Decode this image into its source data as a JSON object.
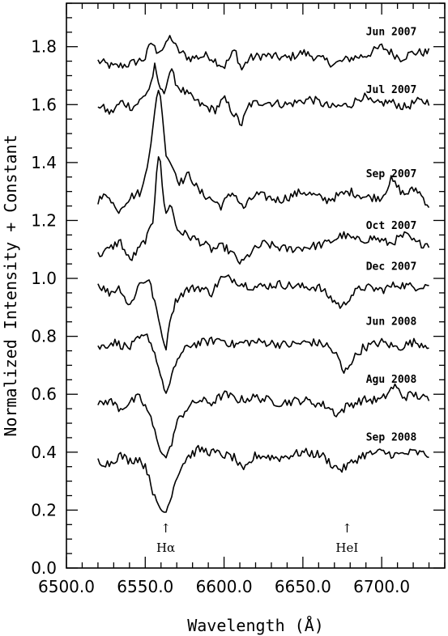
{
  "chart_data": {
    "type": "line",
    "xlabel": "Wavelength (Å)",
    "ylabel": "Normalized Intensity + Constant",
    "xlim": [
      6500,
      6740
    ],
    "ylim": [
      0.0,
      1.95
    ],
    "xticks": [
      6500,
      6550,
      6600,
      6650,
      6700
    ],
    "xtick_labels": [
      "6500.0",
      "6550.0",
      "6600.0",
      "6650.0",
      "6700.0"
    ],
    "yticks": [
      0.0,
      0.2,
      0.4,
      0.6,
      0.8,
      1.0,
      1.2,
      1.4,
      1.6,
      1.8
    ],
    "ytick_labels": [
      "0.0",
      "0.2",
      "0.4",
      "0.6",
      "0.8",
      "1.0",
      "1.2",
      "1.4",
      "1.6",
      "1.8"
    ],
    "series": [
      {
        "name": "Jun 2007",
        "baseline": 1.76,
        "label_pos": [
          6690,
          1.84
        ],
        "x": [
          6520,
          6530,
          6540,
          6550,
          6554,
          6557,
          6561,
          6566,
          6570,
          6578,
          6590,
          6600,
          6607,
          6611,
          6616,
          6625,
          6640,
          6650,
          6660,
          6670,
          6680,
          6690,
          6700,
          6712,
          6720,
          6730
        ],
        "y": [
          1.75,
          1.73,
          1.74,
          1.76,
          1.82,
          1.78,
          1.79,
          1.84,
          1.79,
          1.76,
          1.77,
          1.73,
          1.79,
          1.72,
          1.76,
          1.77,
          1.76,
          1.78,
          1.76,
          1.74,
          1.76,
          1.77,
          1.8,
          1.76,
          1.78,
          1.78
        ]
      },
      {
        "name": "Jul 2007",
        "baseline": 1.6,
        "label_pos": [
          6690,
          1.64
        ],
        "x": [
          6520,
          6528,
          6535,
          6542,
          6548,
          6553,
          6556,
          6559,
          6562,
          6566,
          6571,
          6578,
          6585,
          6594,
          6600,
          6606,
          6611,
          6616,
          6625,
          6640,
          6655,
          6668,
          6680,
          6688,
          6695,
          6705,
          6715,
          6722,
          6730
        ],
        "y": [
          1.6,
          1.57,
          1.61,
          1.59,
          1.62,
          1.66,
          1.73,
          1.66,
          1.64,
          1.72,
          1.66,
          1.63,
          1.6,
          1.58,
          1.62,
          1.57,
          1.53,
          1.6,
          1.61,
          1.6,
          1.62,
          1.59,
          1.6,
          1.63,
          1.6,
          1.61,
          1.59,
          1.61,
          1.61
        ]
      },
      {
        "name": "Sep 2007",
        "baseline": 1.26,
        "label_pos": [
          6690,
          1.35
        ],
        "x": [
          6520,
          6527,
          6532,
          6540,
          6548,
          6552,
          6555,
          6558,
          6560,
          6563,
          6567,
          6572,
          6578,
          6584,
          6590,
          6598,
          6606,
          6612,
          6620,
          6635,
          6650,
          6665,
          6680,
          6690,
          6700,
          6706,
          6714,
          6722,
          6730
        ],
        "y": [
          1.27,
          1.29,
          1.23,
          1.28,
          1.3,
          1.42,
          1.52,
          1.66,
          1.62,
          1.43,
          1.39,
          1.33,
          1.36,
          1.3,
          1.28,
          1.25,
          1.3,
          1.24,
          1.29,
          1.27,
          1.3,
          1.27,
          1.3,
          1.28,
          1.28,
          1.34,
          1.29,
          1.31,
          1.25
        ]
      },
      {
        "name": "Oct 2007",
        "baseline": 1.1,
        "label_pos": [
          6690,
          1.17
        ],
        "x": [
          6520,
          6527,
          6534,
          6540,
          6546,
          6552,
          6555,
          6557,
          6559,
          6561,
          6563,
          6566,
          6570,
          6576,
          6584,
          6592,
          6600,
          6606,
          6611,
          6617,
          6625,
          6640,
          6655,
          6665,
          6675,
          6685,
          6695,
          6705,
          6715,
          6722,
          6730
        ],
        "y": [
          1.08,
          1.1,
          1.13,
          1.06,
          1.1,
          1.15,
          1.2,
          1.36,
          1.45,
          1.3,
          1.22,
          1.26,
          1.17,
          1.15,
          1.13,
          1.1,
          1.11,
          1.08,
          1.05,
          1.09,
          1.12,
          1.1,
          1.11,
          1.12,
          1.15,
          1.13,
          1.14,
          1.12,
          1.15,
          1.12,
          1.12
        ]
      },
      {
        "name": "Dec 2007",
        "baseline": 0.97,
        "label_pos": [
          6690,
          1.03
        ],
        "x": [
          6520,
          6527,
          6534,
          6540,
          6546,
          6552,
          6556,
          6560,
          6563,
          6566,
          6570,
          6576,
          6584,
          6592,
          6598,
          6605,
          6612,
          6620,
          6635,
          6650,
          6660,
          6668,
          6675,
          6680,
          6688,
          6700,
          6710,
          6720,
          6730
        ],
        "y": [
          0.98,
          0.95,
          0.97,
          0.9,
          0.98,
          1.0,
          0.92,
          0.82,
          0.75,
          0.87,
          0.93,
          0.96,
          0.97,
          0.95,
          1.0,
          1.0,
          0.98,
          0.97,
          0.98,
          0.97,
          0.97,
          0.93,
          0.9,
          0.94,
          0.97,
          0.96,
          0.98,
          0.97,
          0.98
        ]
      },
      {
        "name": "Jun 2008",
        "baseline": 0.77,
        "label_pos": [
          6690,
          0.84
        ],
        "x": [
          6520,
          6530,
          6540,
          6546,
          6552,
          6556,
          6560,
          6563,
          6566,
          6570,
          6578,
          6588,
          6598,
          6606,
          6614,
          6625,
          6640,
          6655,
          6665,
          6672,
          6676,
          6680,
          6688,
          6700,
          6710,
          6720,
          6730
        ],
        "y": [
          0.76,
          0.78,
          0.76,
          0.79,
          0.8,
          0.74,
          0.66,
          0.6,
          0.64,
          0.72,
          0.77,
          0.78,
          0.79,
          0.77,
          0.78,
          0.78,
          0.77,
          0.78,
          0.77,
          0.73,
          0.67,
          0.71,
          0.76,
          0.78,
          0.76,
          0.78,
          0.77
        ]
      },
      {
        "name": "Agu 2008",
        "baseline": 0.58,
        "label_pos": [
          6690,
          0.64
        ],
        "x": [
          6520,
          6527,
          6534,
          6540,
          6546,
          6552,
          6556,
          6560,
          6563,
          6566,
          6570,
          6576,
          6584,
          6592,
          6600,
          6610,
          6620,
          6635,
          6650,
          6665,
          6672,
          6678,
          6688,
          6700,
          6708,
          6714,
          6720,
          6730
        ],
        "y": [
          0.56,
          0.58,
          0.55,
          0.57,
          0.59,
          0.54,
          0.47,
          0.4,
          0.38,
          0.42,
          0.5,
          0.55,
          0.58,
          0.57,
          0.6,
          0.58,
          0.59,
          0.57,
          0.58,
          0.56,
          0.53,
          0.56,
          0.58,
          0.58,
          0.63,
          0.59,
          0.6,
          0.58
        ]
      },
      {
        "name": "Sep 2008",
        "baseline": 0.38,
        "label_pos": [
          6690,
          0.44
        ],
        "x": [
          6520,
          6527,
          6534,
          6540,
          6546,
          6552,
          6556,
          6560,
          6563,
          6566,
          6570,
          6576,
          6584,
          6592,
          6600,
          6607,
          6612,
          6620,
          6635,
          6650,
          6662,
          6670,
          6675,
          6680,
          6688,
          6700,
          6710,
          6720,
          6730
        ],
        "y": [
          0.37,
          0.36,
          0.39,
          0.37,
          0.38,
          0.33,
          0.24,
          0.2,
          0.19,
          0.24,
          0.32,
          0.38,
          0.41,
          0.4,
          0.39,
          0.38,
          0.33,
          0.39,
          0.38,
          0.4,
          0.39,
          0.35,
          0.34,
          0.36,
          0.39,
          0.4,
          0.39,
          0.4,
          0.39
        ]
      }
    ],
    "annotations": [
      {
        "label": "Hα",
        "x": 6563,
        "arrow": "↑"
      },
      {
        "label": "HeI",
        "x": 6678,
        "arrow": "↑"
      }
    ],
    "grid": false,
    "legend": "none"
  }
}
